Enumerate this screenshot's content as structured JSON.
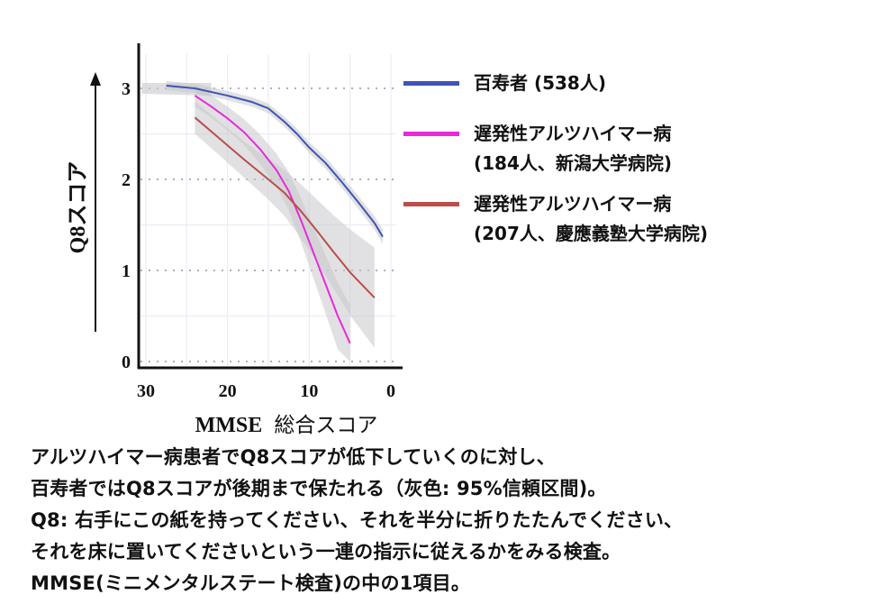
{
  "chart_data": {
    "type": "line",
    "title": "",
    "xlabel": "MMSE 総合スコア",
    "xlabel_parts": {
      "latin": "MMSE",
      "jp": "総合スコア"
    },
    "ylabel": "Q8スコア",
    "xlim": [
      30,
      0
    ],
    "ylim": [
      0,
      3
    ],
    "x_reversed": true,
    "x_ticks": [
      30,
      20,
      10,
      0
    ],
    "y_ticks": [
      0,
      1,
      2,
      3
    ],
    "grid": true,
    "legend_position": "right",
    "confidence_band": "gray 95% CI",
    "series": [
      {
        "name": "百寿者 (538人)",
        "color": "#3d55b4",
        "x": [
          27.5,
          24,
          20,
          17,
          15,
          13,
          11.5,
          10,
          8,
          6,
          4,
          2,
          1
        ],
        "y": [
          3.03,
          3.0,
          2.92,
          2.85,
          2.78,
          2.63,
          2.5,
          2.35,
          2.18,
          1.97,
          1.75,
          1.52,
          1.37
        ]
      },
      {
        "name": "遅発性アルツハイマー病 (184人、新潟大学病院)",
        "color": "#e82ad8",
        "x": [
          24,
          22,
          20,
          18,
          16,
          14,
          12.5,
          11,
          9.5,
          8,
          6.5,
          5
        ],
        "y": [
          2.92,
          2.8,
          2.67,
          2.52,
          2.33,
          2.1,
          1.87,
          1.55,
          1.2,
          0.85,
          0.5,
          0.2
        ]
      },
      {
        "name": "遅発性アルツハイマー病 (207人、慶應義塾大学病院)",
        "color": "#b94e4a",
        "x": [
          24,
          21,
          18,
          15,
          13,
          11,
          9,
          7,
          5,
          2
        ],
        "y": [
          2.68,
          2.45,
          2.22,
          2.0,
          1.85,
          1.65,
          1.43,
          1.2,
          0.98,
          0.7
        ]
      }
    ]
  },
  "legend": {
    "items": [
      {
        "line1": "百寿者 (538人)",
        "line2": "",
        "color": "#3d55b4"
      },
      {
        "line1": "遅発性アルツハイマー病",
        "line2": "(184人、新潟大学病院)",
        "color": "#e82ad8"
      },
      {
        "line1": "遅発性アルツハイマー病",
        "line2": "(207人、慶應義塾大学病院)",
        "color": "#b94e4a"
      }
    ]
  },
  "caption": {
    "lines": [
      "アルツハイマー病患者でQ8スコアが低下していくのに対し、",
      "百寿者ではQ8スコアが後期まで保たれる（灰色: 95%信頼区間)。",
      "Q8: 右手にこの紙を持ってください、それを半分に折りたたんでください、",
      "それを床に置いてくださいという一連の指示に従えるかをみる検査。",
      "MMSE(ミニメンタルステート検査)の中の1項目。"
    ]
  }
}
